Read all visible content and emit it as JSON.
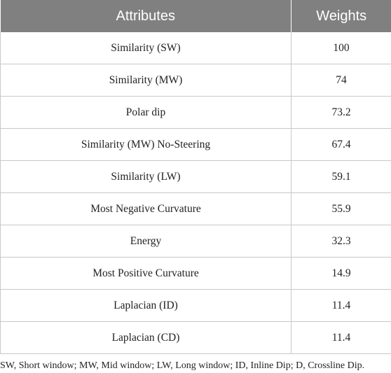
{
  "table": {
    "headers": [
      "Attributes",
      "Weights"
    ],
    "rows": [
      {
        "attribute": "Similarity (SW)",
        "weight": "100"
      },
      {
        "attribute": "Similarity (MW)",
        "weight": "74"
      },
      {
        "attribute": "Polar dip",
        "weight": "73.2"
      },
      {
        "attribute": "Similarity (MW) No-Steering",
        "weight": "67.4"
      },
      {
        "attribute": "Similarity (LW)",
        "weight": "59.1"
      },
      {
        "attribute": "Most Negative Curvature",
        "weight": "55.9"
      },
      {
        "attribute": "Energy",
        "weight": "32.3"
      },
      {
        "attribute": "Most Positive Curvature",
        "weight": "14.9"
      },
      {
        "attribute": "Laplacian (ID)",
        "weight": "11.4"
      },
      {
        "attribute": "Laplacian (CD)",
        "weight": "11.4"
      }
    ]
  },
  "footnote": "SW, Short window; MW, Mid window; LW, Long window; ID, Inline Dip; D, Crossline Dip.",
  "colors": {
    "header_bg": "#808080",
    "header_text": "#ffffff",
    "border": "#c8c8c8"
  }
}
